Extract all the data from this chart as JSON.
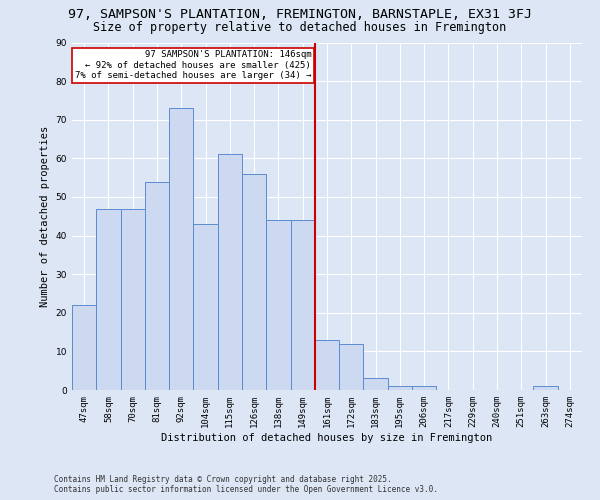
{
  "title_line1": "97, SAMPSON'S PLANTATION, FREMINGTON, BARNSTAPLE, EX31 3FJ",
  "title_line2": "Size of property relative to detached houses in Fremington",
  "xlabel": "Distribution of detached houses by size in Fremington",
  "ylabel": "Number of detached properties",
  "categories": [
    "47sqm",
    "58sqm",
    "70sqm",
    "81sqm",
    "92sqm",
    "104sqm",
    "115sqm",
    "126sqm",
    "138sqm",
    "149sqm",
    "161sqm",
    "172sqm",
    "183sqm",
    "195sqm",
    "206sqm",
    "217sqm",
    "229sqm",
    "240sqm",
    "251sqm",
    "263sqm",
    "274sqm"
  ],
  "values": [
    22,
    47,
    47,
    54,
    73,
    43,
    61,
    56,
    44,
    44,
    13,
    12,
    3,
    1,
    1,
    0,
    0,
    0,
    0,
    1,
    0
  ],
  "bar_color": "#ccd9f0",
  "bar_edge_color": "#5b8bd0",
  "vline_color": "#cc0000",
  "vline_x": 9.5,
  "annotation_line1": "97 SAMPSON'S PLANTATION: 146sqm",
  "annotation_line2": "← 92% of detached houses are smaller (425)",
  "annotation_line3": "7% of semi-detached houses are larger (34) →",
  "annotation_box_facecolor": "#ffffff",
  "annotation_box_edgecolor": "#cc0000",
  "ylim": [
    0,
    90
  ],
  "yticks": [
    0,
    10,
    20,
    30,
    40,
    50,
    60,
    70,
    80,
    90
  ],
  "bg_color": "#dce6f5",
  "grid_color": "#ffffff",
  "title_fontsize": 9.5,
  "subtitle_fontsize": 8.5,
  "axis_label_fontsize": 7.5,
  "tick_fontsize": 6.5,
  "annotation_fontsize": 6.5,
  "footer_fontsize": 5.5,
  "footer_line1": "Contains HM Land Registry data © Crown copyright and database right 2025.",
  "footer_line2": "Contains public sector information licensed under the Open Government Licence v3.0."
}
